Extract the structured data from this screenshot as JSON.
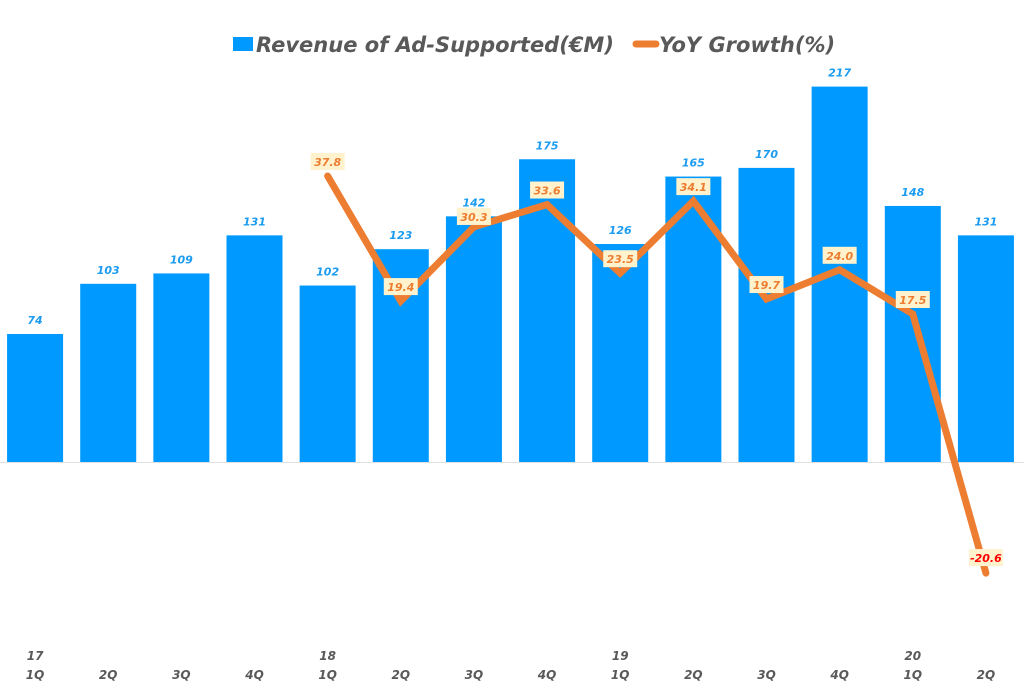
{
  "chart_data": {
    "type": "bar+line",
    "title": "",
    "legend": {
      "position": "top-center",
      "entries": [
        {
          "name": "Revenue of Ad-Supported(€M)",
          "type": "bar",
          "color": "#0099ff"
        },
        {
          "name": "YoY Growth(%)",
          "type": "line",
          "color": "#ed7d31"
        }
      ]
    },
    "categories": [
      {
        "year": "17",
        "quarter": "1Q"
      },
      {
        "year": "",
        "quarter": "2Q"
      },
      {
        "year": "",
        "quarter": "3Q"
      },
      {
        "year": "",
        "quarter": "4Q"
      },
      {
        "year": "18",
        "quarter": "1Q"
      },
      {
        "year": "",
        "quarter": "2Q"
      },
      {
        "year": "",
        "quarter": "3Q"
      },
      {
        "year": "",
        "quarter": "4Q"
      },
      {
        "year": "19",
        "quarter": "1Q"
      },
      {
        "year": "",
        "quarter": "2Q"
      },
      {
        "year": "",
        "quarter": "3Q"
      },
      {
        "year": "",
        "quarter": "4Q"
      },
      {
        "year": "20",
        "quarter": "1Q"
      },
      {
        "year": "",
        "quarter": "2Q"
      }
    ],
    "series": [
      {
        "name": "Revenue of Ad-Supported(€M)",
        "type": "bar",
        "axis": "primary",
        "color": "#0099ff",
        "label_color": "#1b9cf0",
        "values": [
          74,
          103,
          109,
          131,
          102,
          123,
          142,
          175,
          126,
          165,
          170,
          217,
          148,
          131
        ],
        "labels": [
          "74",
          "103",
          "109",
          "131",
          "102",
          "123",
          "142",
          "175",
          "126",
          "165",
          "170",
          "217",
          "148",
          "131"
        ]
      },
      {
        "name": "YoY Growth(%)",
        "type": "line",
        "axis": "secondary",
        "color": "#ed7d31",
        "label_bg": "#fff2cc",
        "negative_label_color": "#ff0000",
        "values": [
          null,
          null,
          null,
          null,
          37.8,
          19.4,
          30.3,
          33.6,
          23.5,
          34.1,
          19.7,
          24.0,
          17.5,
          -20.6
        ],
        "labels": [
          "",
          "",
          "",
          "",
          "37.8",
          "19.4",
          "30.3",
          "33.6",
          "23.5",
          "34.1",
          "19.7",
          "24.0",
          "17.5",
          "-20.6"
        ]
      }
    ],
    "primary_axis": {
      "visible": false,
      "ylim": [
        0,
        217
      ]
    },
    "secondary_axis": {
      "visible": false
    },
    "grid": false,
    "xlabel": "",
    "ylabel": ""
  }
}
